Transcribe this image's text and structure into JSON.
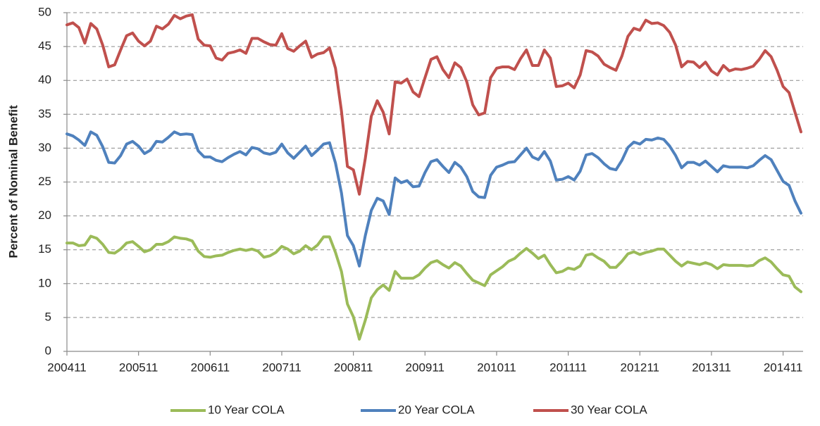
{
  "chart_data": {
    "type": "line",
    "ylabel": "Percent of Nominal Benefit",
    "ylim": [
      0,
      50
    ],
    "yticks": [
      0,
      5,
      10,
      15,
      20,
      25,
      30,
      35,
      40,
      45,
      50
    ],
    "grid": true,
    "legend": "bottom",
    "categories": [
      "200411",
      null,
      null,
      null,
      null,
      null,
      null,
      null,
      null,
      null,
      null,
      null,
      "200511",
      null,
      null,
      null,
      null,
      null,
      null,
      null,
      null,
      null,
      null,
      null,
      "200611",
      null,
      null,
      null,
      null,
      null,
      null,
      null,
      null,
      null,
      null,
      null,
      "200711",
      null,
      null,
      null,
      null,
      null,
      null,
      null,
      null,
      null,
      null,
      null,
      "200811",
      null,
      null,
      null,
      null,
      null,
      null,
      null,
      null,
      null,
      null,
      null,
      "200911",
      null,
      null,
      null,
      null,
      null,
      null,
      null,
      null,
      null,
      null,
      null,
      "201011",
      null,
      null,
      null,
      null,
      null,
      null,
      null,
      null,
      null,
      null,
      null,
      "201111",
      null,
      null,
      null,
      null,
      null,
      null,
      null,
      null,
      null,
      null,
      null,
      "201211",
      null,
      null,
      null,
      null,
      null,
      null,
      null,
      null,
      null,
      null,
      null,
      "201311",
      null,
      null,
      null,
      null,
      null,
      null,
      null,
      null,
      null,
      null,
      null,
      "201411",
      null,
      null,
      null
    ],
    "series": [
      {
        "name": "10 Year COLA",
        "color": "#9bbb59",
        "values": [
          16.0,
          16.0,
          15.6,
          15.7,
          17.0,
          16.7,
          15.8,
          14.6,
          14.5,
          15.1,
          16.0,
          16.2,
          15.5,
          14.7,
          15.0,
          15.8,
          15.8,
          16.2,
          16.9,
          16.7,
          16.6,
          16.3,
          14.8,
          14.0,
          13.9,
          14.1,
          14.2,
          14.6,
          14.9,
          15.1,
          14.9,
          15.1,
          14.8,
          13.9,
          14.1,
          14.6,
          15.5,
          15.1,
          14.4,
          14.8,
          15.6,
          15.0,
          15.7,
          16.9,
          16.9,
          14.6,
          11.8,
          7.0,
          5.1,
          1.8,
          4.6,
          7.9,
          9.1,
          9.8,
          9.0,
          11.8,
          10.8,
          10.8,
          10.8,
          11.3,
          12.3,
          13.1,
          13.4,
          12.8,
          12.3,
          13.1,
          12.6,
          11.5,
          10.5,
          10.1,
          9.7,
          11.3,
          11.9,
          12.5,
          13.3,
          13.7,
          14.5,
          15.2,
          14.5,
          13.7,
          14.2,
          12.8,
          11.6,
          11.8,
          12.3,
          12.1,
          12.6,
          14.2,
          14.4,
          13.8,
          13.3,
          12.4,
          12.4,
          13.3,
          14.4,
          14.7,
          14.3,
          14.6,
          14.8,
          15.1,
          15.1,
          14.2,
          13.3,
          12.6,
          13.2,
          13.0,
          12.8,
          13.1,
          12.8,
          12.2,
          12.8,
          12.7,
          12.7,
          12.7,
          12.6,
          12.7,
          13.4,
          13.8,
          13.2,
          12.2,
          11.3,
          11.1,
          9.5,
          8.8
        ]
      },
      {
        "name": "20 Year COLA",
        "color": "#4f81bd",
        "values": [
          32.1,
          31.8,
          31.2,
          30.4,
          32.4,
          31.9,
          30.2,
          27.9,
          27.8,
          28.9,
          30.6,
          31.0,
          30.3,
          29.2,
          29.7,
          31.0,
          30.9,
          31.6,
          32.4,
          32.0,
          32.1,
          32.0,
          29.6,
          28.7,
          28.7,
          28.2,
          28.0,
          28.6,
          29.1,
          29.5,
          29.0,
          30.1,
          29.9,
          29.3,
          29.1,
          29.4,
          30.6,
          29.3,
          28.5,
          29.4,
          30.3,
          28.9,
          29.7,
          30.6,
          30.8,
          27.8,
          23.4,
          17.1,
          15.6,
          12.6,
          17.1,
          20.8,
          22.6,
          22.2,
          20.2,
          25.6,
          24.9,
          25.2,
          24.3,
          24.4,
          26.4,
          28.0,
          28.3,
          27.3,
          26.4,
          27.9,
          27.2,
          25.8,
          23.6,
          22.8,
          22.7,
          26.0,
          27.2,
          27.5,
          27.9,
          28.0,
          29.0,
          30.0,
          28.7,
          28.3,
          29.5,
          28.1,
          25.3,
          25.4,
          25.8,
          25.3,
          26.6,
          29.0,
          29.2,
          28.6,
          27.7,
          27.0,
          26.8,
          28.2,
          30.1,
          30.9,
          30.6,
          31.3,
          31.2,
          31.5,
          31.3,
          30.3,
          28.9,
          27.1,
          27.9,
          27.9,
          27.5,
          28.1,
          27.3,
          26.5,
          27.4,
          27.2,
          27.2,
          27.2,
          27.1,
          27.4,
          28.2,
          28.9,
          28.3,
          26.7,
          25.1,
          24.5,
          22.2,
          20.4
        ]
      },
      {
        "name": "30 Year COLA",
        "color": "#c0504d",
        "values": [
          48.2,
          48.5,
          47.8,
          45.5,
          48.4,
          47.6,
          45.2,
          42.0,
          42.3,
          44.5,
          46.6,
          47.0,
          45.8,
          45.1,
          45.8,
          48.0,
          47.6,
          48.3,
          49.6,
          49.1,
          49.5,
          49.7,
          46.1,
          45.2,
          45.1,
          43.3,
          43.0,
          44.0,
          44.2,
          44.5,
          44.0,
          46.2,
          46.2,
          45.7,
          45.3,
          45.2,
          46.9,
          44.7,
          44.3,
          45.1,
          45.8,
          43.4,
          43.9,
          44.1,
          44.8,
          41.8,
          35.5,
          27.3,
          26.8,
          23.2,
          28.5,
          34.7,
          37.0,
          35.3,
          32.1,
          39.8,
          39.6,
          40.2,
          38.3,
          37.6,
          40.4,
          43.1,
          43.5,
          41.6,
          40.4,
          42.6,
          41.9,
          39.8,
          36.4,
          34.9,
          35.2,
          40.4,
          41.8,
          42.0,
          42.0,
          41.6,
          43.2,
          44.5,
          42.2,
          42.2,
          44.5,
          43.3,
          39.1,
          39.2,
          39.6,
          38.9,
          40.8,
          44.4,
          44.2,
          43.6,
          42.4,
          41.9,
          41.5,
          43.6,
          46.5,
          47.7,
          47.4,
          48.9,
          48.4,
          48.5,
          48.1,
          47.1,
          45.2,
          42.0,
          42.8,
          42.7,
          41.9,
          42.7,
          41.4,
          40.8,
          42.2,
          41.4,
          41.7,
          41.6,
          41.8,
          42.1,
          43.1,
          44.4,
          43.5,
          41.5,
          39.1,
          38.2,
          35.3,
          32.4
        ]
      }
    ]
  }
}
